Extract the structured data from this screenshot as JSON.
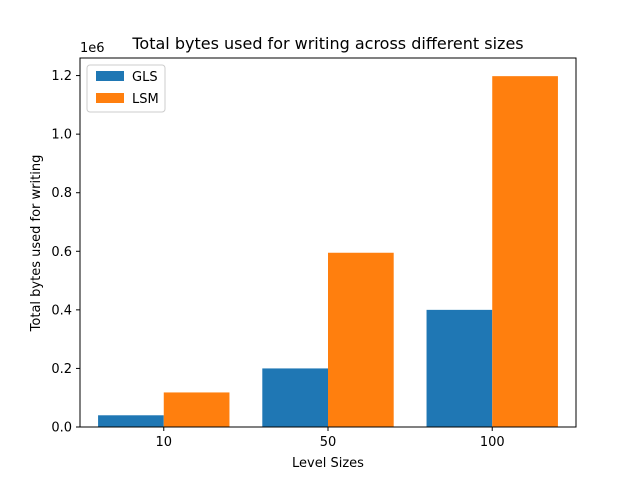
{
  "chart_data": {
    "type": "bar",
    "title": "Total bytes used for writing across different sizes",
    "xlabel": "Level Sizes",
    "ylabel": "Total bytes used for writing",
    "y_scale_label": "1e6",
    "categories": [
      "10",
      "50",
      "100"
    ],
    "ylim": [
      0,
      1.26
    ],
    "yticks": [
      0.0,
      0.2,
      0.4,
      0.6,
      0.8,
      1.0,
      1.2
    ],
    "ytick_labels": [
      "0.0",
      "0.2",
      "0.4",
      "0.6",
      "0.8",
      "1.0",
      "1.2"
    ],
    "grid": false,
    "legend_position": "top-left",
    "series": [
      {
        "name": "GLS",
        "color": "#1f77b4",
        "values": [
          0.04,
          0.2,
          0.4
        ]
      },
      {
        "name": "LSM",
        "color": "#ff7f0e",
        "values": [
          0.118,
          0.595,
          1.198
        ]
      }
    ]
  }
}
